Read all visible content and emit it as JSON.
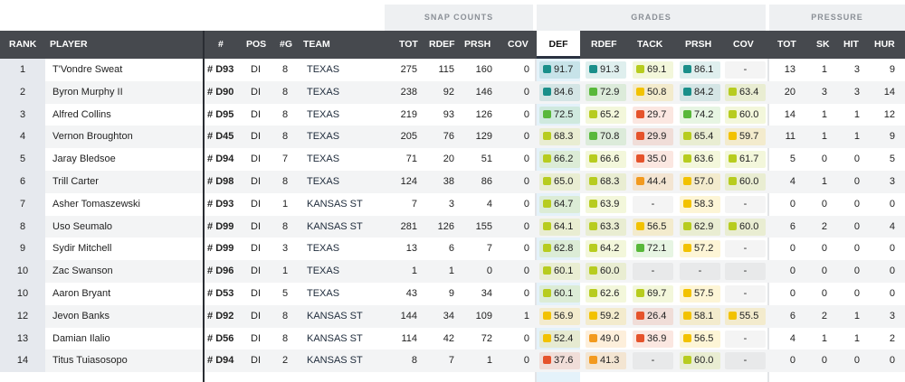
{
  "groups": {
    "snap_counts": "SNAP COUNTS",
    "grades": "GRADES",
    "pressure": "PRESSURE"
  },
  "headers": {
    "rank": "RANK",
    "player": "PLAYER",
    "num": "#",
    "pos": "POS",
    "games": "#G",
    "team": "TEAM",
    "tot": "TOT",
    "rdef": "RDEF",
    "prsh": "PRSH",
    "cov": "COV",
    "g_def": "DEF",
    "g_rdef": "RDEF",
    "g_tack": "TACK",
    "g_prsh": "PRSH",
    "g_cov": "COV",
    "p_tot": "TOT",
    "p_sk": "SK",
    "p_hit": "HIT",
    "p_hur": "HUR"
  },
  "colors": {
    "elite": "#1a8f8a",
    "high": "#58b83a",
    "good": "#b7cc1f",
    "mid": "#f2c200",
    "low": "#f29a1f",
    "poor": "#e5532c"
  },
  "rows": [
    {
      "rank": "1",
      "player": "T'Vondre Sweat",
      "jersey": "D93",
      "pos": "DI",
      "games": "8",
      "team": "TEXAS",
      "tot": "275",
      "rdef": "115",
      "prsh": "160",
      "cov": "0",
      "def": "91.7",
      "grdef": "91.3",
      "tack": "69.1",
      "gprsh": "86.1",
      "gcov": "-",
      "ptot": "13",
      "sk": "1",
      "hit": "3",
      "hur": "9"
    },
    {
      "rank": "2",
      "player": "Byron Murphy II",
      "jersey": "D90",
      "pos": "DI",
      "games": "8",
      "team": "TEXAS",
      "tot": "238",
      "rdef": "92",
      "prsh": "146",
      "cov": "0",
      "def": "84.6",
      "grdef": "72.9",
      "tack": "50.8",
      "gprsh": "84.2",
      "gcov": "63.4",
      "ptot": "20",
      "sk": "3",
      "hit": "3",
      "hur": "14"
    },
    {
      "rank": "3",
      "player": "Alfred Collins",
      "jersey": "D95",
      "pos": "DI",
      "games": "8",
      "team": "TEXAS",
      "tot": "219",
      "rdef": "93",
      "prsh": "126",
      "cov": "0",
      "def": "72.5",
      "grdef": "65.2",
      "tack": "29.7",
      "gprsh": "74.2",
      "gcov": "60.0",
      "ptot": "14",
      "sk": "1",
      "hit": "1",
      "hur": "12"
    },
    {
      "rank": "4",
      "player": "Vernon Broughton",
      "jersey": "D45",
      "pos": "DI",
      "games": "8",
      "team": "TEXAS",
      "tot": "205",
      "rdef": "76",
      "prsh": "129",
      "cov": "0",
      "def": "68.3",
      "grdef": "70.8",
      "tack": "29.9",
      "gprsh": "65.4",
      "gcov": "59.7",
      "ptot": "11",
      "sk": "1",
      "hit": "1",
      "hur": "9"
    },
    {
      "rank": "5",
      "player": "Jaray Bledsoe",
      "jersey": "D94",
      "pos": "DI",
      "games": "7",
      "team": "TEXAS",
      "tot": "71",
      "rdef": "20",
      "prsh": "51",
      "cov": "0",
      "def": "66.2",
      "grdef": "66.6",
      "tack": "35.0",
      "gprsh": "63.6",
      "gcov": "61.7",
      "ptot": "5",
      "sk": "0",
      "hit": "0",
      "hur": "5"
    },
    {
      "rank": "6",
      "player": "Trill Carter",
      "jersey": "D98",
      "pos": "DI",
      "games": "8",
      "team": "TEXAS",
      "tot": "124",
      "rdef": "38",
      "prsh": "86",
      "cov": "0",
      "def": "65.0",
      "grdef": "68.3",
      "tack": "44.4",
      "gprsh": "57.0",
      "gcov": "60.0",
      "ptot": "4",
      "sk": "1",
      "hit": "0",
      "hur": "3"
    },
    {
      "rank": "7",
      "player": "Asher Tomaszewski",
      "jersey": "D93",
      "pos": "DI",
      "games": "1",
      "team": "KANSAS ST",
      "tot": "7",
      "rdef": "3",
      "prsh": "4",
      "cov": "0",
      "def": "64.7",
      "grdef": "63.9",
      "tack": "-",
      "gprsh": "58.3",
      "gcov": "-",
      "ptot": "0",
      "sk": "0",
      "hit": "0",
      "hur": "0"
    },
    {
      "rank": "8",
      "player": "Uso Seumalo",
      "jersey": "D99",
      "pos": "DI",
      "games": "8",
      "team": "KANSAS ST",
      "tot": "281",
      "rdef": "126",
      "prsh": "155",
      "cov": "0",
      "def": "64.1",
      "grdef": "63.3",
      "tack": "56.5",
      "gprsh": "62.9",
      "gcov": "60.0",
      "ptot": "6",
      "sk": "2",
      "hit": "0",
      "hur": "4"
    },
    {
      "rank": "9",
      "player": "Sydir Mitchell",
      "jersey": "D99",
      "pos": "DI",
      "games": "3",
      "team": "TEXAS",
      "tot": "13",
      "rdef": "6",
      "prsh": "7",
      "cov": "0",
      "def": "62.8",
      "grdef": "64.2",
      "tack": "72.1",
      "gprsh": "57.2",
      "gcov": "-",
      "ptot": "0",
      "sk": "0",
      "hit": "0",
      "hur": "0"
    },
    {
      "rank": "10",
      "player": "Zac Swanson",
      "jersey": "D96",
      "pos": "DI",
      "games": "1",
      "team": "TEXAS",
      "tot": "1",
      "rdef": "1",
      "prsh": "0",
      "cov": "0",
      "def": "60.1",
      "grdef": "60.0",
      "tack": "-",
      "gprsh": "-",
      "gcov": "-",
      "ptot": "0",
      "sk": "0",
      "hit": "0",
      "hur": "0"
    },
    {
      "rank": "10",
      "player": "Aaron Bryant",
      "jersey": "D53",
      "pos": "DI",
      "games": "5",
      "team": "TEXAS",
      "tot": "43",
      "rdef": "9",
      "prsh": "34",
      "cov": "0",
      "def": "60.1",
      "grdef": "62.6",
      "tack": "69.7",
      "gprsh": "57.5",
      "gcov": "-",
      "ptot": "0",
      "sk": "0",
      "hit": "0",
      "hur": "0"
    },
    {
      "rank": "12",
      "player": "Jevon Banks",
      "jersey": "D92",
      "pos": "DI",
      "games": "8",
      "team": "KANSAS ST",
      "tot": "144",
      "rdef": "34",
      "prsh": "109",
      "cov": "1",
      "def": "56.9",
      "grdef": "59.2",
      "tack": "26.4",
      "gprsh": "58.1",
      "gcov": "55.5",
      "ptot": "6",
      "sk": "2",
      "hit": "1",
      "hur": "3"
    },
    {
      "rank": "13",
      "player": "Damian Ilalio",
      "jersey": "D56",
      "pos": "DI",
      "games": "8",
      "team": "KANSAS ST",
      "tot": "114",
      "rdef": "42",
      "prsh": "72",
      "cov": "0",
      "def": "52.4",
      "grdef": "49.0",
      "tack": "36.9",
      "gprsh": "56.5",
      "gcov": "-",
      "ptot": "4",
      "sk": "1",
      "hit": "1",
      "hur": "2"
    },
    {
      "rank": "14",
      "player": "Titus Tuiasosopo",
      "jersey": "D94",
      "pos": "DI",
      "games": "2",
      "team": "KANSAS ST",
      "tot": "8",
      "rdef": "7",
      "prsh": "1",
      "cov": "0",
      "def": "37.6",
      "grdef": "41.3",
      "tack": "-",
      "gprsh": "60.0",
      "gcov": "-",
      "ptot": "0",
      "sk": "0",
      "hit": "0",
      "hur": "0"
    }
  ]
}
